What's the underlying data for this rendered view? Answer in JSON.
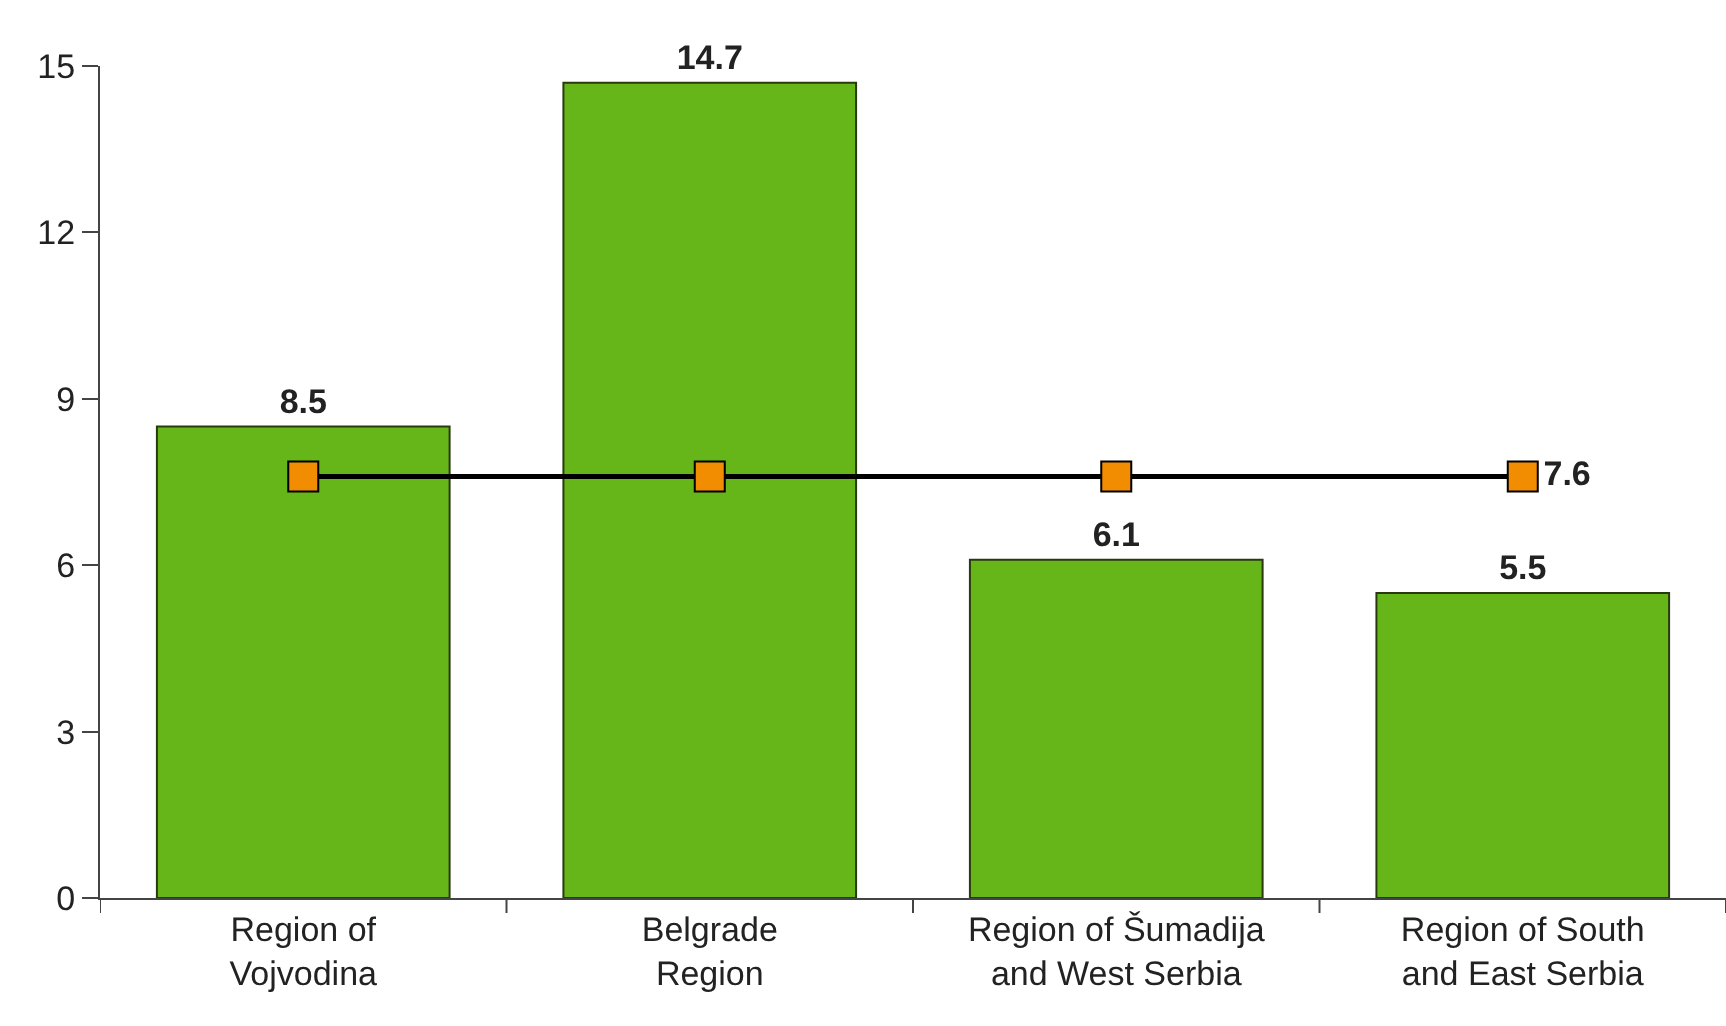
{
  "chart_data": {
    "type": "bar",
    "categories": [
      "Region of\nVojvodina",
      "Belgrade\nRegion",
      "Region of Šumadija\nand West Serbia",
      "Region of South\nand East Serbia"
    ],
    "series": [
      {
        "color": "#66b519",
        "values": [
          8.5,
          14.7,
          6.1,
          5.5
        ]
      },
      {
        "type": "line",
        "color": "#f28c00",
        "values": [
          7.6,
          7.6,
          7.6,
          7.6
        ],
        "value_labels": [
          null,
          null,
          null,
          "7.6"
        ]
      }
    ],
    "ylim": [
      0,
      15
    ],
    "yticks": [
      0,
      3,
      6,
      9,
      12,
      15
    ],
    "grid": false,
    "legend": false,
    "data_labels": true,
    "marker": "square",
    "line_style": "solid"
  }
}
